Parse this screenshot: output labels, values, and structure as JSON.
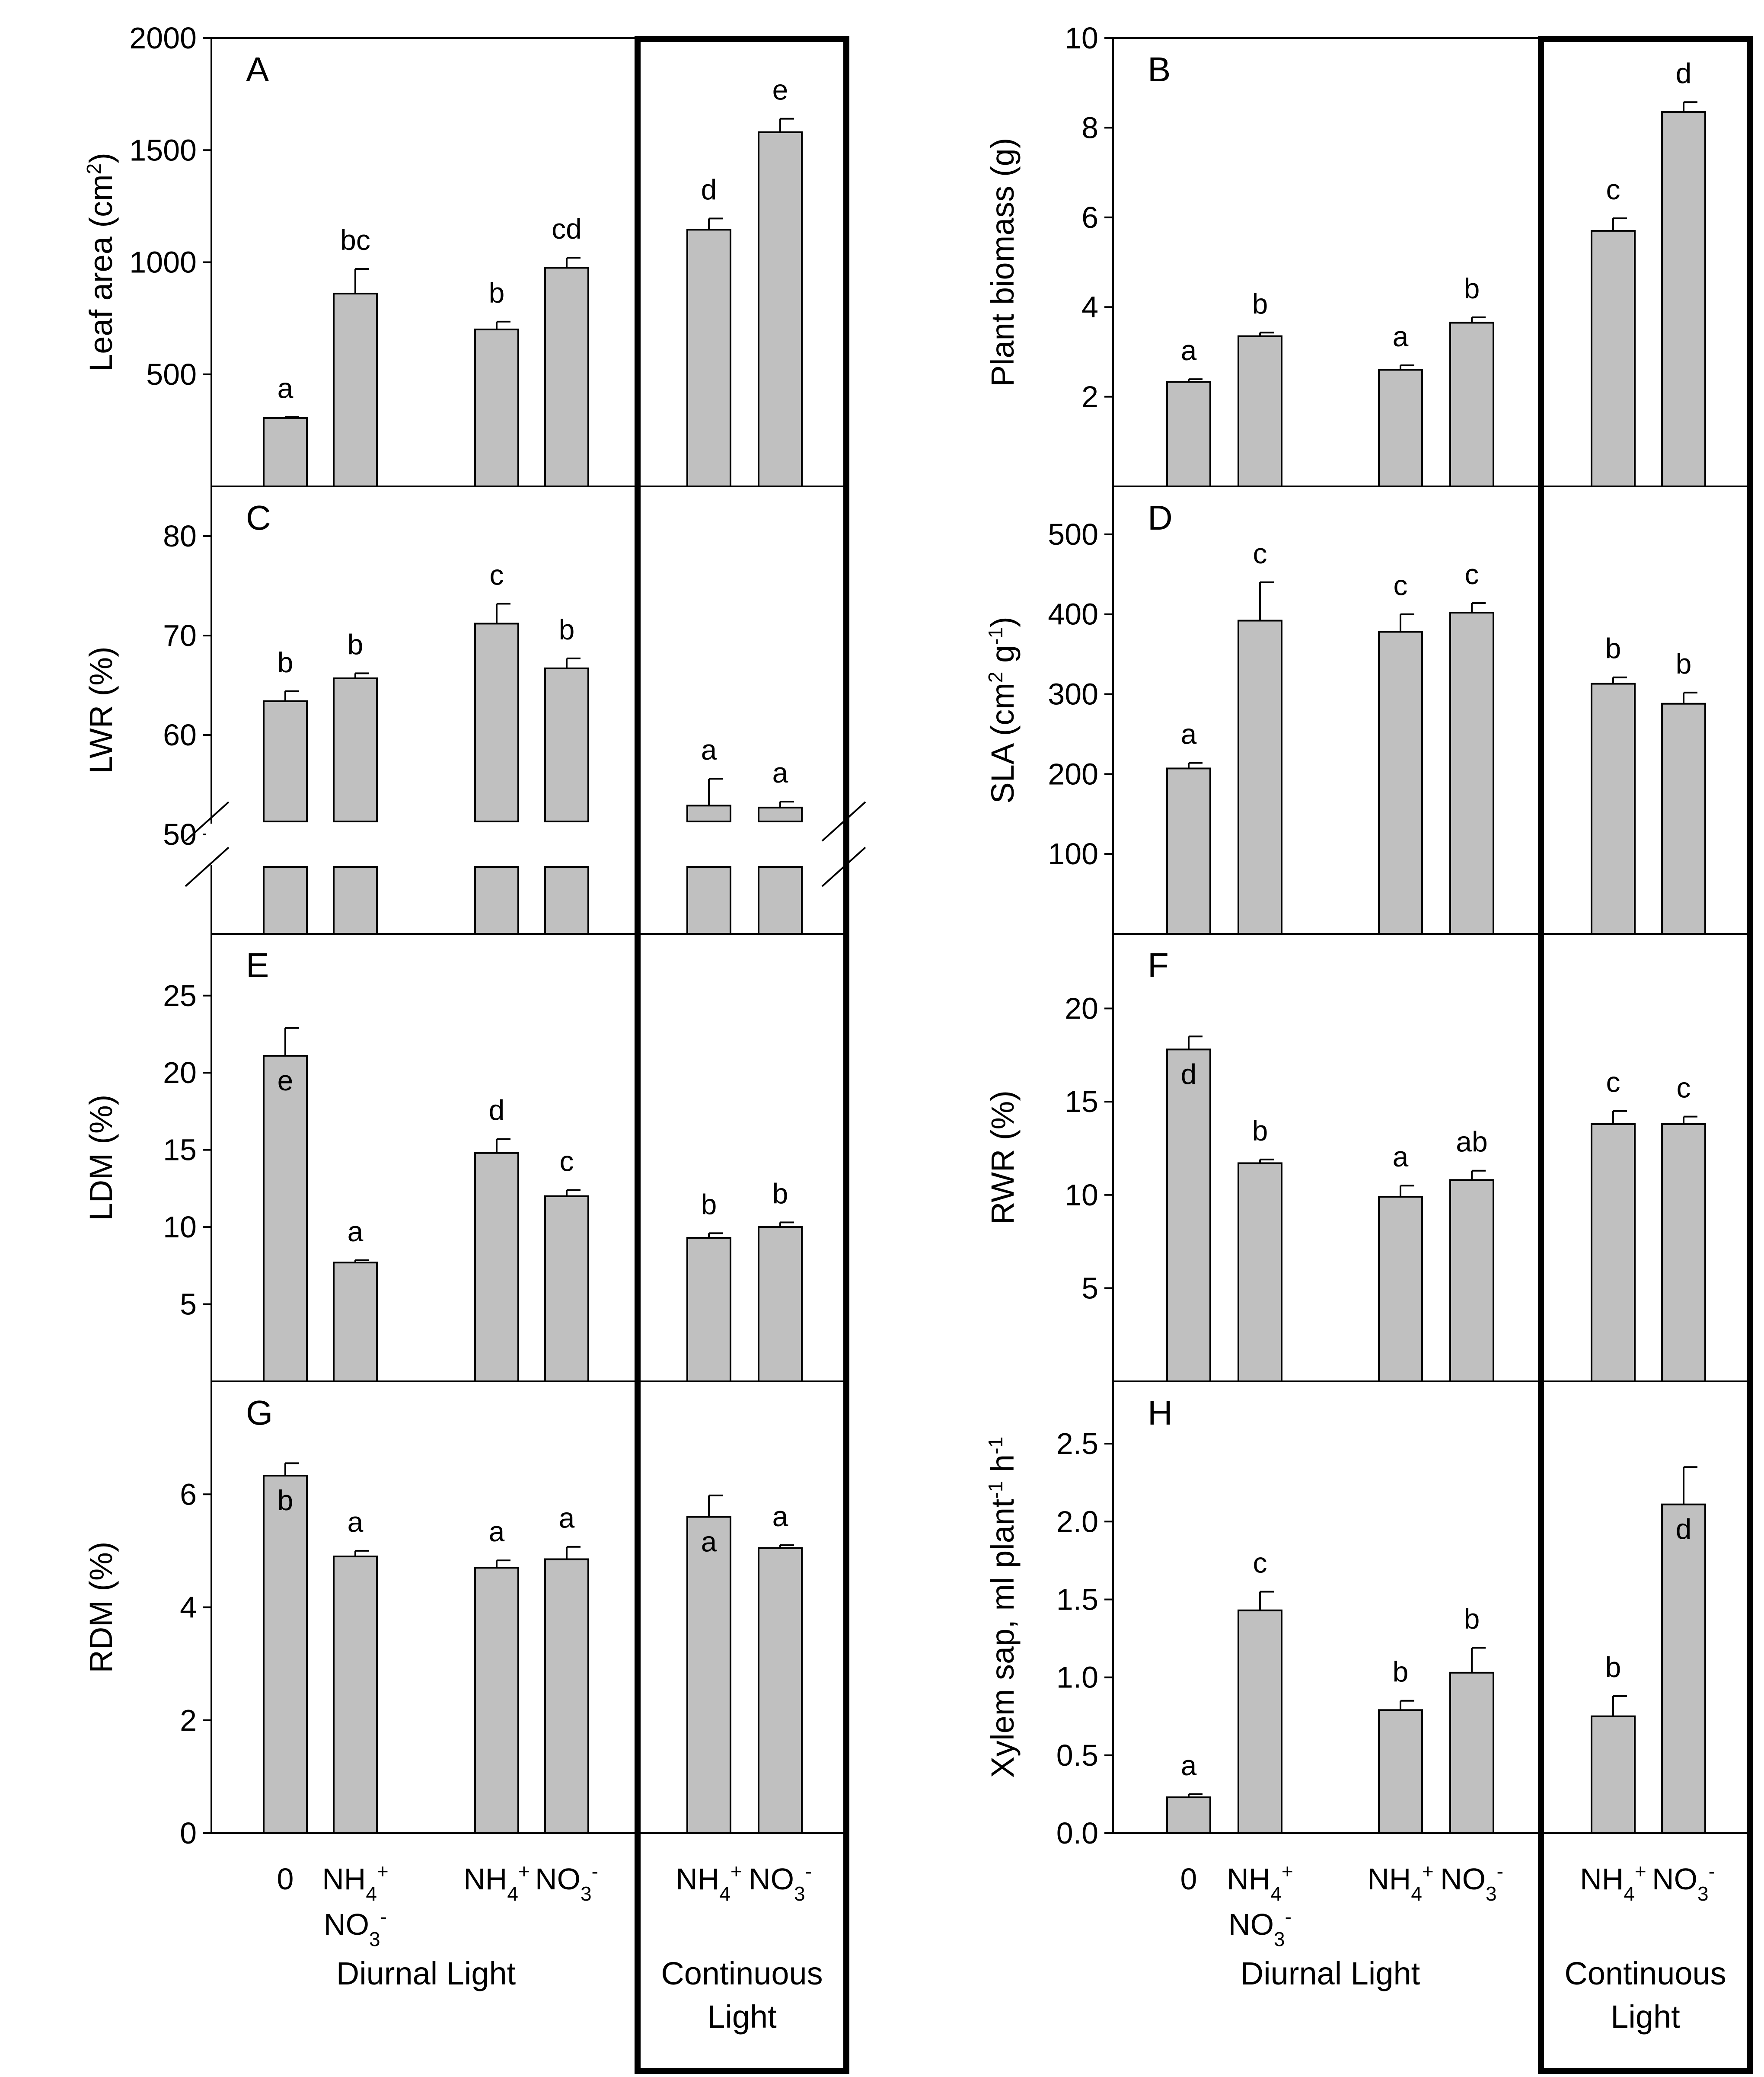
{
  "chart_data": {
    "type": "bar",
    "x_groups": [
      {
        "name": "Diurnal Light",
        "categories": [
          "0",
          "NH4+ NO3-",
          "NH4+",
          "NO3-"
        ]
      },
      {
        "name": "Continuous Light",
        "categories": [
          "NH4+",
          "NO3-"
        ]
      }
    ],
    "categories": [
      "0",
      "NH4+ NO3-",
      "NH4+",
      "NO3-",
      "NH4+",
      "NO3-"
    ],
    "category_labels": [
      {
        "lines": [
          [
            {
              "t": "0"
            }
          ]
        ]
      },
      {
        "lines": [
          [
            {
              "t": "NH"
            },
            {
              "t": "4",
              "s": "sub"
            },
            {
              "t": "+",
              "s": "sup"
            }
          ],
          [
            {
              "t": "NO"
            },
            {
              "t": "3",
              "s": "sub"
            },
            {
              "t": "-",
              "s": "sup"
            }
          ]
        ]
      },
      {
        "lines": [
          [
            {
              "t": "NH"
            },
            {
              "t": "4",
              "s": "sub"
            },
            {
              "t": "+",
              "s": "sup"
            }
          ]
        ]
      },
      {
        "lines": [
          [
            {
              "t": "NO"
            },
            {
              "t": "3",
              "s": "sub"
            },
            {
              "t": "-",
              "s": "sup"
            }
          ]
        ]
      },
      {
        "lines": [
          [
            {
              "t": "NH"
            },
            {
              "t": "4",
              "s": "sub"
            },
            {
              "t": "+",
              "s": "sup"
            }
          ]
        ]
      },
      {
        "lines": [
          [
            {
              "t": "NO"
            },
            {
              "t": "3",
              "s": "sub"
            },
            {
              "t": "-",
              "s": "sup"
            }
          ]
        ]
      }
    ],
    "group_labels": {
      "diurnal": "Diurnal Light",
      "continuous_line1": "Continuous",
      "continuous_line2": "Light"
    },
    "bar_color": "#c0c0c0",
    "panels": [
      {
        "id": "A",
        "ylabel": "Leaf area (cm²)",
        "ylabel_parts": [
          {
            "t": "Leaf area (cm"
          },
          {
            "t": "2",
            "s": "sup"
          },
          {
            "t": ")"
          }
        ],
        "ylim": [
          0,
          2000
        ],
        "yticks": [
          500,
          1000,
          1500,
          2000
        ],
        "tick_labels": [
          "500",
          "1000",
          "1500",
          "2000"
        ],
        "values": [
          305,
          860,
          700,
          975,
          1145,
          1580
        ],
        "errors": [
          5,
          110,
          35,
          45,
          50,
          60
        ],
        "letters": [
          "a",
          "bc",
          "b",
          "cd",
          "d",
          "e"
        ],
        "letter_inside": [
          false,
          false,
          false,
          false,
          false,
          false
        ]
      },
      {
        "id": "B",
        "ylabel": "Plant biomass (g)",
        "ylabel_parts": [
          {
            "t": "Plant biomass (g)"
          }
        ],
        "ylim": [
          0,
          10
        ],
        "yticks": [
          2,
          4,
          6,
          8,
          10
        ],
        "tick_labels": [
          "2",
          "4",
          "6",
          "8",
          "10"
        ],
        "values": [
          2.33,
          3.35,
          2.6,
          3.65,
          5.7,
          8.35
        ],
        "errors": [
          0.06,
          0.08,
          0.1,
          0.12,
          0.28,
          0.22
        ],
        "letters": [
          "a",
          "b",
          "a",
          "b",
          "c",
          "d"
        ],
        "letter_inside": [
          false,
          false,
          false,
          false,
          false,
          false
        ]
      },
      {
        "id": "C",
        "ylabel": "LWR (%)",
        "ylabel_parts": [
          {
            "t": "LWR (%)"
          }
        ],
        "ylim": [
          40,
          85
        ],
        "yticks": [
          50,
          60,
          70,
          80
        ],
        "tick_labels": [
          "50",
          "60",
          "70",
          "80"
        ],
        "axis_break": true,
        "values": [
          63.4,
          65.7,
          71.2,
          66.7,
          52.9,
          52.7
        ],
        "errors": [
          1.0,
          0.5,
          2.0,
          1.0,
          2.7,
          0.6
        ],
        "letters": [
          "b",
          "b",
          "c",
          "b",
          "a",
          "a"
        ],
        "letter_inside": [
          false,
          false,
          false,
          false,
          false,
          false
        ]
      },
      {
        "id": "D",
        "ylabel": "SLA (cm² g⁻¹)",
        "ylabel_parts": [
          {
            "t": "SLA (cm"
          },
          {
            "t": "2",
            "s": "sup"
          },
          {
            "t": " g"
          },
          {
            "t": "-1",
            "s": "sup"
          },
          {
            "t": ")"
          }
        ],
        "ylim": [
          0,
          560
        ],
        "yticks": [
          100,
          200,
          300,
          400,
          500
        ],
        "tick_labels": [
          "100",
          "200",
          "300",
          "400",
          "500"
        ],
        "values": [
          207,
          392,
          378,
          402,
          313,
          288
        ],
        "errors": [
          7,
          48,
          22,
          12,
          8,
          14
        ],
        "letters": [
          "a",
          "c",
          "c",
          "c",
          "b",
          "b"
        ],
        "letter_inside": [
          false,
          false,
          false,
          false,
          false,
          false
        ]
      },
      {
        "id": "E",
        "ylabel": "LDM (%)",
        "ylabel_parts": [
          {
            "t": "LDM (%)"
          }
        ],
        "ylim": [
          0,
          29
        ],
        "yticks": [
          5,
          10,
          15,
          20,
          25
        ],
        "tick_labels": [
          "5",
          "10",
          "15",
          "20",
          "25"
        ],
        "values": [
          21.1,
          7.7,
          14.8,
          12.0,
          9.3,
          10.0
        ],
        "errors": [
          1.8,
          0.15,
          0.9,
          0.4,
          0.3,
          0.3
        ],
        "letters": [
          "e",
          "a",
          "d",
          "c",
          "b",
          "b"
        ],
        "letter_inside": [
          true,
          false,
          false,
          false,
          false,
          false
        ]
      },
      {
        "id": "F",
        "ylabel": "RWR (%)",
        "ylabel_parts": [
          {
            "t": "RWR (%)"
          }
        ],
        "ylim": [
          0,
          24
        ],
        "yticks": [
          5,
          10,
          15,
          20
        ],
        "tick_labels": [
          "5",
          "10",
          "15",
          "20"
        ],
        "values": [
          17.8,
          11.7,
          9.9,
          10.8,
          13.8,
          13.8
        ],
        "errors": [
          0.7,
          0.2,
          0.6,
          0.5,
          0.7,
          0.4
        ],
        "letters": [
          "d",
          "b",
          "a",
          "ab",
          "c",
          "c"
        ],
        "letter_inside": [
          true,
          false,
          false,
          false,
          false,
          false
        ]
      },
      {
        "id": "G",
        "ylabel": "RDM (%)",
        "ylabel_parts": [
          {
            "t": "RDM (%)"
          }
        ],
        "ylim": [
          0,
          8
        ],
        "yticks": [
          0,
          2,
          4,
          6
        ],
        "tick_labels": [
          "0",
          "2",
          "4",
          "6"
        ],
        "values": [
          6.33,
          4.9,
          4.7,
          4.85,
          5.6,
          5.05
        ],
        "errors": [
          0.22,
          0.1,
          0.13,
          0.22,
          0.38,
          0.05
        ],
        "letters": [
          "b",
          "a",
          "a",
          "a",
          "a",
          "a"
        ],
        "letter_inside": [
          true,
          false,
          false,
          false,
          true,
          false
        ]
      },
      {
        "id": "H",
        "ylabel": "Xylem sap, ml plant⁻¹ h⁻¹",
        "ylabel_parts": [
          {
            "t": "Xylem sap, ml plant"
          },
          {
            "t": "-1",
            "s": "sup"
          },
          {
            "t": " h"
          },
          {
            "t": "-1",
            "s": "sup"
          }
        ],
        "ylim": [
          0,
          2.9
        ],
        "yticks": [
          0.0,
          0.5,
          1.0,
          1.5,
          2.0,
          2.5
        ],
        "tick_labels": [
          "0.0",
          "0.5",
          "1.0",
          "1.5",
          "2.0",
          "2.5"
        ],
        "values": [
          0.23,
          1.43,
          0.79,
          1.03,
          0.75,
          2.11
        ],
        "errors": [
          0.02,
          0.12,
          0.06,
          0.16,
          0.13,
          0.24
        ],
        "letters": [
          "a",
          "c",
          "b",
          "b",
          "b",
          "d"
        ],
        "letter_inside": [
          false,
          false,
          false,
          false,
          false,
          true
        ]
      }
    ]
  }
}
